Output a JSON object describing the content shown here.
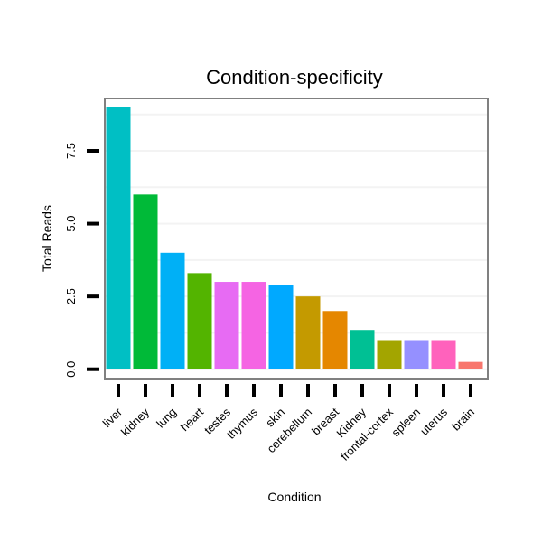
{
  "chart_data": {
    "type": "bar",
    "title": "Condition-specificity",
    "xlabel": "Condition",
    "ylabel": "Total Reads",
    "ylim": [
      -0.35,
      9.3
    ],
    "yticks": [
      0.0,
      2.5,
      5.0,
      7.5
    ],
    "ytick_labels": [
      "0.0",
      "2.5",
      "5.0",
      "7.5"
    ],
    "grid": true,
    "categories": [
      "liver",
      "kidney",
      "lung",
      "heart",
      "testes",
      "thymus",
      "skin",
      "cerebellum",
      "breast",
      "Kidney",
      "frontal-cortex",
      "spleen",
      "uterus",
      "brain"
    ],
    "values": [
      9,
      6,
      4,
      3.3,
      3,
      3,
      2.9,
      2.5,
      2,
      1.35,
      1,
      1,
      1,
      0.25
    ],
    "colors": [
      "#00BFC4",
      "#00BA38",
      "#00B0F6",
      "#53B400",
      "#E76BF3",
      "#F564E3",
      "#00A9FF",
      "#C49A00",
      "#E58700",
      "#00C094",
      "#A3A500",
      "#9590FF",
      "#FF62BC",
      "#F8766D"
    ]
  }
}
